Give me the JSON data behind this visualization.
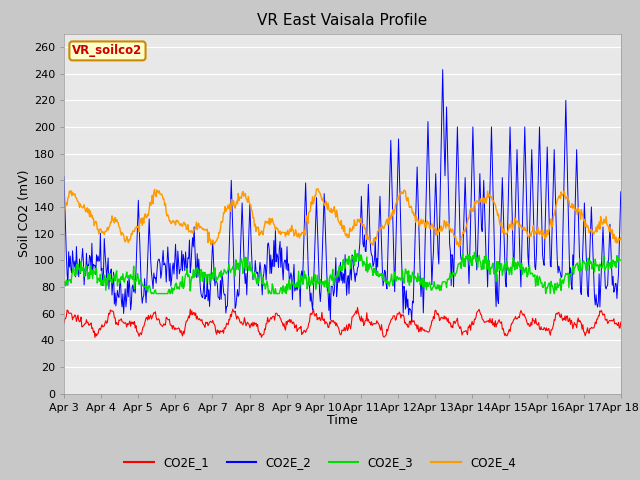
{
  "title": "VR East Vaisala Profile",
  "xlabel": "Time",
  "ylabel": "Soil CO2 (mV)",
  "annotation": "VR_soilco2",
  "ylim": [
    0,
    270
  ],
  "yticks": [
    0,
    20,
    40,
    60,
    80,
    100,
    120,
    140,
    160,
    180,
    200,
    220,
    240,
    260
  ],
  "xtick_labels": [
    "Apr 3",
    "Apr 4",
    "Apr 5",
    "Apr 6",
    "Apr 7",
    "Apr 8",
    "Apr 9",
    "Apr 10",
    "Apr 11",
    "Apr 12",
    "Apr 13",
    "Apr 14",
    "Apr 15",
    "Apr 16",
    "Apr 17",
    "Apr 18"
  ],
  "colors": {
    "CO2E_1": "#ff0000",
    "CO2E_2": "#0000ff",
    "CO2E_3": "#00dd00",
    "CO2E_4": "#ff9900"
  },
  "fig_bg": "#c8c8c8",
  "plot_bg": "#e8e8e8",
  "grid_color": "#ffffff",
  "annotation_bg": "#ffffcc",
  "annotation_border": "#cc8800",
  "annotation_text_color": "#cc0000",
  "title_fontsize": 11,
  "axis_label_fontsize": 9,
  "tick_fontsize": 8
}
